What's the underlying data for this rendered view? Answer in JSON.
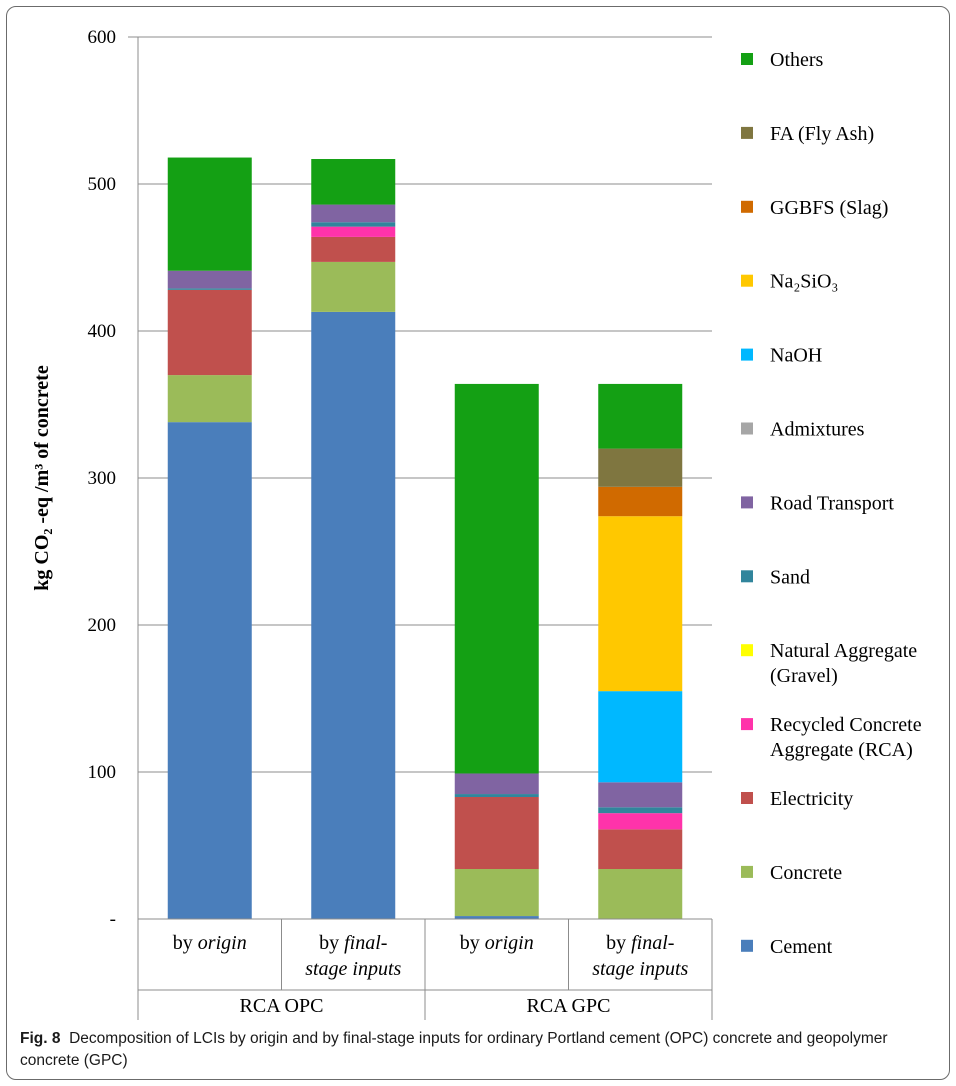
{
  "chart_data": {
    "type": "bar",
    "stacked": true,
    "ylabel": "kg CO₂ -eq /m³ of concrete",
    "ylim": [
      0,
      600
    ],
    "yticks": [
      {
        "value": 0,
        "label": "-"
      },
      {
        "value": 100,
        "label": "100"
      },
      {
        "value": 200,
        "label": "200"
      },
      {
        "value": 300,
        "label": "300"
      },
      {
        "value": 400,
        "label": "400"
      },
      {
        "value": 500,
        "label": "500"
      },
      {
        "value": 600,
        "label": "600"
      }
    ],
    "grid": true,
    "legend_position": "right",
    "categories": [
      {
        "label_plain": "by ",
        "label_italic": "origin",
        "line2": ""
      },
      {
        "label_plain": "by ",
        "label_italic": "final-",
        "line2": "stage inputs"
      },
      {
        "label_plain": "by ",
        "label_italic": "origin",
        "line2": ""
      },
      {
        "label_plain": "by ",
        "label_italic": "final-",
        "line2": "stage inputs"
      }
    ],
    "groups": [
      {
        "label": "RCA OPC",
        "span": [
          0,
          1
        ]
      },
      {
        "label": "RCA GPC",
        "span": [
          2,
          3
        ]
      }
    ],
    "series": [
      {
        "name": "Cement",
        "color": "#4a7ebb",
        "values": [
          338,
          413,
          2,
          0
        ]
      },
      {
        "name": "Concrete",
        "color": "#9bbb59",
        "values": [
          32,
          34,
          32,
          34
        ]
      },
      {
        "name": "Electricity",
        "color": "#c0504d",
        "values": [
          58,
          17,
          49,
          27
        ]
      },
      {
        "name": "Recycled Concrete Aggregate (RCA)",
        "color": "#ff33aa",
        "values": [
          0,
          7,
          0,
          11
        ]
      },
      {
        "name": "Natural Aggregate (Gravel)",
        "color": "#ffff00",
        "values": [
          0,
          0,
          0,
          0
        ]
      },
      {
        "name": "Sand",
        "color": "#31859c",
        "values": [
          1,
          3,
          2,
          4
        ]
      },
      {
        "name": "Road Transport",
        "color": "#8064a2",
        "values": [
          12,
          12,
          14,
          17
        ]
      },
      {
        "name": "Admixtures",
        "color": "#a6a6a6",
        "values": [
          0,
          0,
          0,
          0
        ]
      },
      {
        "name": "NaOH",
        "color": "#00b8ff",
        "values": [
          0,
          0,
          0,
          62
        ]
      },
      {
        "name": "Na2SiO3",
        "color": "#ffc800",
        "values": [
          0,
          0,
          0,
          119
        ]
      },
      {
        "name": "GGBFS (Slag)",
        "color": "#d06a00",
        "values": [
          0,
          0,
          0,
          20
        ]
      },
      {
        "name": "FA (Fly Ash)",
        "color": "#7f7640",
        "values": [
          0,
          0,
          0,
          26
        ]
      },
      {
        "name": "Others",
        "color": "#14a014",
        "values": [
          77,
          31,
          265,
          44
        ]
      }
    ],
    "legend": [
      {
        "lines": [
          "Others"
        ],
        "color": "#14a014"
      },
      {
        "lines": [
          "FA (Fly Ash)"
        ],
        "color": "#7f7640"
      },
      {
        "lines": [
          "GGBFS (Slag)"
        ],
        "color": "#d06a00"
      },
      {
        "lines": [
          "Na₂SiO₃"
        ],
        "color": "#ffc800"
      },
      {
        "lines": [
          "NaOH"
        ],
        "color": "#00b8ff"
      },
      {
        "lines": [
          "Admixtures"
        ],
        "color": "#a6a6a6"
      },
      {
        "lines": [
          "Road Transport"
        ],
        "color": "#8064a2"
      },
      {
        "lines": [
          "Sand"
        ],
        "color": "#31859c"
      },
      {
        "lines": [
          "Natural Aggregate",
          "(Gravel)"
        ],
        "color": "#ffff00"
      },
      {
        "lines": [
          "Recycled Concrete",
          "Aggregate (RCA)"
        ],
        "color": "#ff33aa"
      },
      {
        "lines": [
          "Electricity"
        ],
        "color": "#c0504d"
      },
      {
        "lines": [
          "Concrete"
        ],
        "color": "#9bbb59"
      },
      {
        "lines": [
          "Cement"
        ],
        "color": "#4a7ebb"
      }
    ]
  },
  "caption": {
    "fig_label": "Fig. 8",
    "text": "Decomposition of LCIs by origin and by final-stage inputs for ordinary Portland cement (OPC) concrete and geopolymer concrete (GPC)"
  }
}
